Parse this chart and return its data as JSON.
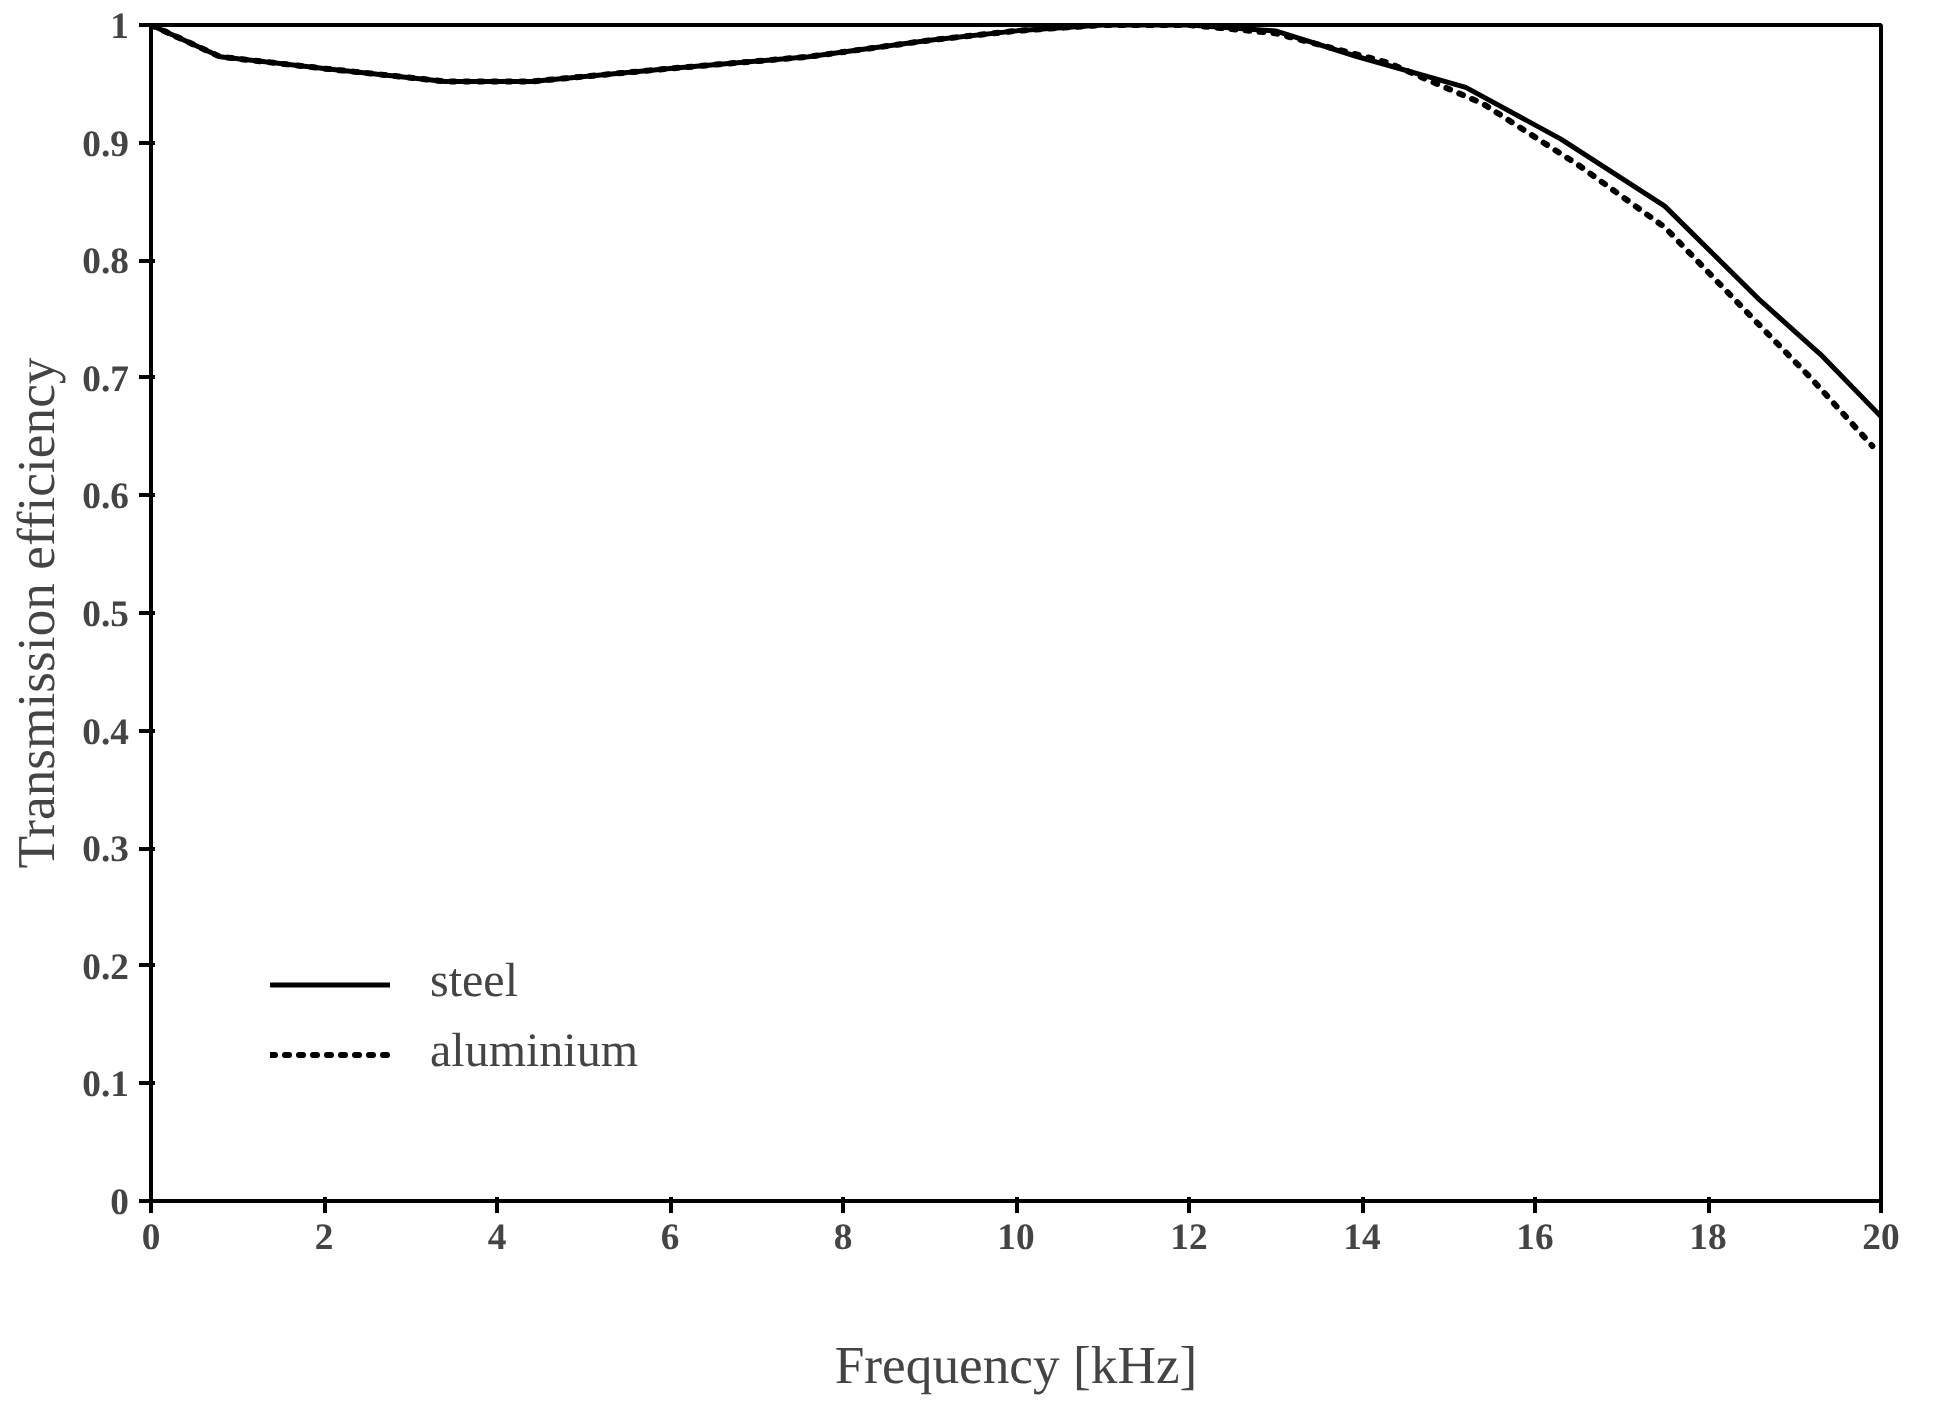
{
  "chart_data": {
    "type": "line",
    "xlabel": "Frequency [kHz]",
    "ylabel": "Transmission efficiency",
    "xlim": [
      0,
      20
    ],
    "ylim": [
      0,
      1
    ],
    "xticks": [
      0,
      2,
      4,
      6,
      8,
      10,
      12,
      14,
      16,
      18,
      20
    ],
    "yticks": [
      0,
      0.1,
      0.2,
      0.3,
      0.4,
      0.5,
      0.6,
      0.7,
      0.8,
      0.9,
      1
    ],
    "grid": false,
    "legend": "bottom left",
    "marker": "none",
    "series": [
      {
        "name": "steel",
        "color": "#000000",
        "line_style": "solid",
        "x": [
          0,
          0.8,
          2,
          3.4,
          4.4,
          6,
          7.6,
          9,
          10,
          11,
          12,
          13,
          13.95,
          15.2,
          16.3,
          17.5,
          18.6,
          19.3,
          20
        ],
        "values": [
          1,
          0.973,
          0.963,
          0.952,
          0.952,
          0.963,
          0.973,
          0.987,
          0.995,
          1,
          1,
          0.995,
          0.973,
          0.947,
          0.903,
          0.846,
          0.766,
          0.72,
          0.667
        ]
      },
      {
        "name": "aluminium",
        "color": "#000000",
        "line_style": "dotted",
        "x": [
          0,
          0.8,
          2,
          3.4,
          4.4,
          6,
          7.6,
          9,
          10,
          11,
          12,
          13,
          14.3,
          15.4,
          16.5,
          17.5,
          18.5,
          19.2,
          19.9
        ],
        "values": [
          1,
          0.973,
          0.963,
          0.952,
          0.952,
          0.963,
          0.973,
          0.987,
          0.995,
          1,
          1,
          0.993,
          0.968,
          0.933,
          0.881,
          0.828,
          0.752,
          0.699,
          0.642
        ]
      }
    ]
  }
}
